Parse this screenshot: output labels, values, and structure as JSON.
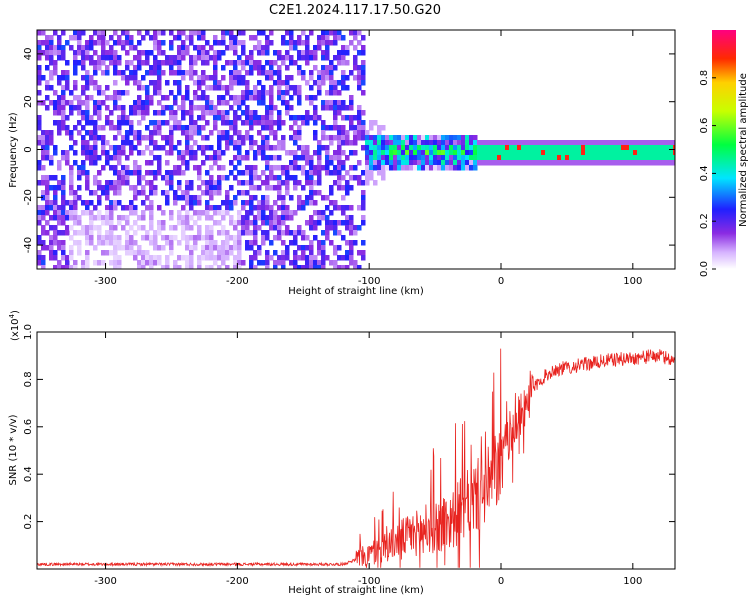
{
  "title": "C2E1.2024.117.17.50.G20",
  "colors": {
    "spectrogram_low": "#ffffff",
    "spectrogram_mid": "#5b12f0",
    "snr_line": "#e8231f"
  },
  "colorbar": {
    "label": "Normalized spectral amplitude",
    "range": [
      0.0,
      1.0
    ],
    "ticks": [
      0.0,
      0.2,
      0.4,
      0.6,
      0.8
    ],
    "tick_labels": [
      "0.0",
      "0.2",
      "0.4",
      "0.6",
      "0.8"
    ],
    "colormap": "rainbow (white-violet-blue-cyan-green-yellow-red-magenta)"
  },
  "chart_data": [
    {
      "type": "heatmap",
      "xlabel": "Height of straight line (km)",
      "ylabel": "Frequency (Hz)",
      "xlim": [
        -352,
        132
      ],
      "ylim": [
        -50,
        50
      ],
      "xticks": [
        -300,
        -200,
        -100,
        0,
        100
      ],
      "xtick_labels": [
        "-300",
        "-200",
        "-100",
        "0",
        "100"
      ],
      "yticks": [
        -40,
        -20,
        0,
        20,
        40
      ],
      "ytick_labels": [
        "-40",
        "-20",
        "0",
        "20",
        "40"
      ],
      "grid": false,
      "description_values": {
        "noise_region_x": [
          -352,
          -105
        ],
        "noise_amplitude": 0.15,
        "signal_line_frequency": 0,
        "signal_x_start": -105,
        "signal_amplitude_near_end": 0.45,
        "peak_amplitude": 0.95
      }
    },
    {
      "type": "line",
      "xlabel": "Height of straight line (km)",
      "ylabel": "SNR (10 * v/v)",
      "yscale_label": "(x10",
      "yscale_exponent": "4",
      "yscale_suffix": ")",
      "xlim": [
        -352,
        132
      ],
      "ylim": [
        0,
        1.0
      ],
      "xticks": [
        -300,
        -200,
        -100,
        0,
        100
      ],
      "xtick_labels": [
        "-300",
        "-200",
        "-100",
        "0",
        "100"
      ],
      "yticks": [
        0.2,
        0.4,
        0.6,
        0.8,
        1.0
      ],
      "ytick_labels": [
        "0.2",
        "0.4",
        "0.6",
        "0.8",
        "1.0"
      ],
      "grid": false,
      "series": [
        {
          "x": [
            -352,
            -300,
            -250,
            -200,
            -150,
            -120,
            -100,
            -80,
            -60,
            -40,
            -20,
            -10,
            0,
            5,
            10,
            15,
            20,
            30,
            40,
            60,
            80,
            100,
            120,
            132
          ],
          "y": [
            0.02,
            0.02,
            0.02,
            0.02,
            0.02,
            0.02,
            0.06,
            0.12,
            0.16,
            0.2,
            0.3,
            0.35,
            0.45,
            0.55,
            0.6,
            0.65,
            0.72,
            0.8,
            0.84,
            0.86,
            0.88,
            0.89,
            0.9,
            0.88
          ]
        }
      ]
    }
  ]
}
